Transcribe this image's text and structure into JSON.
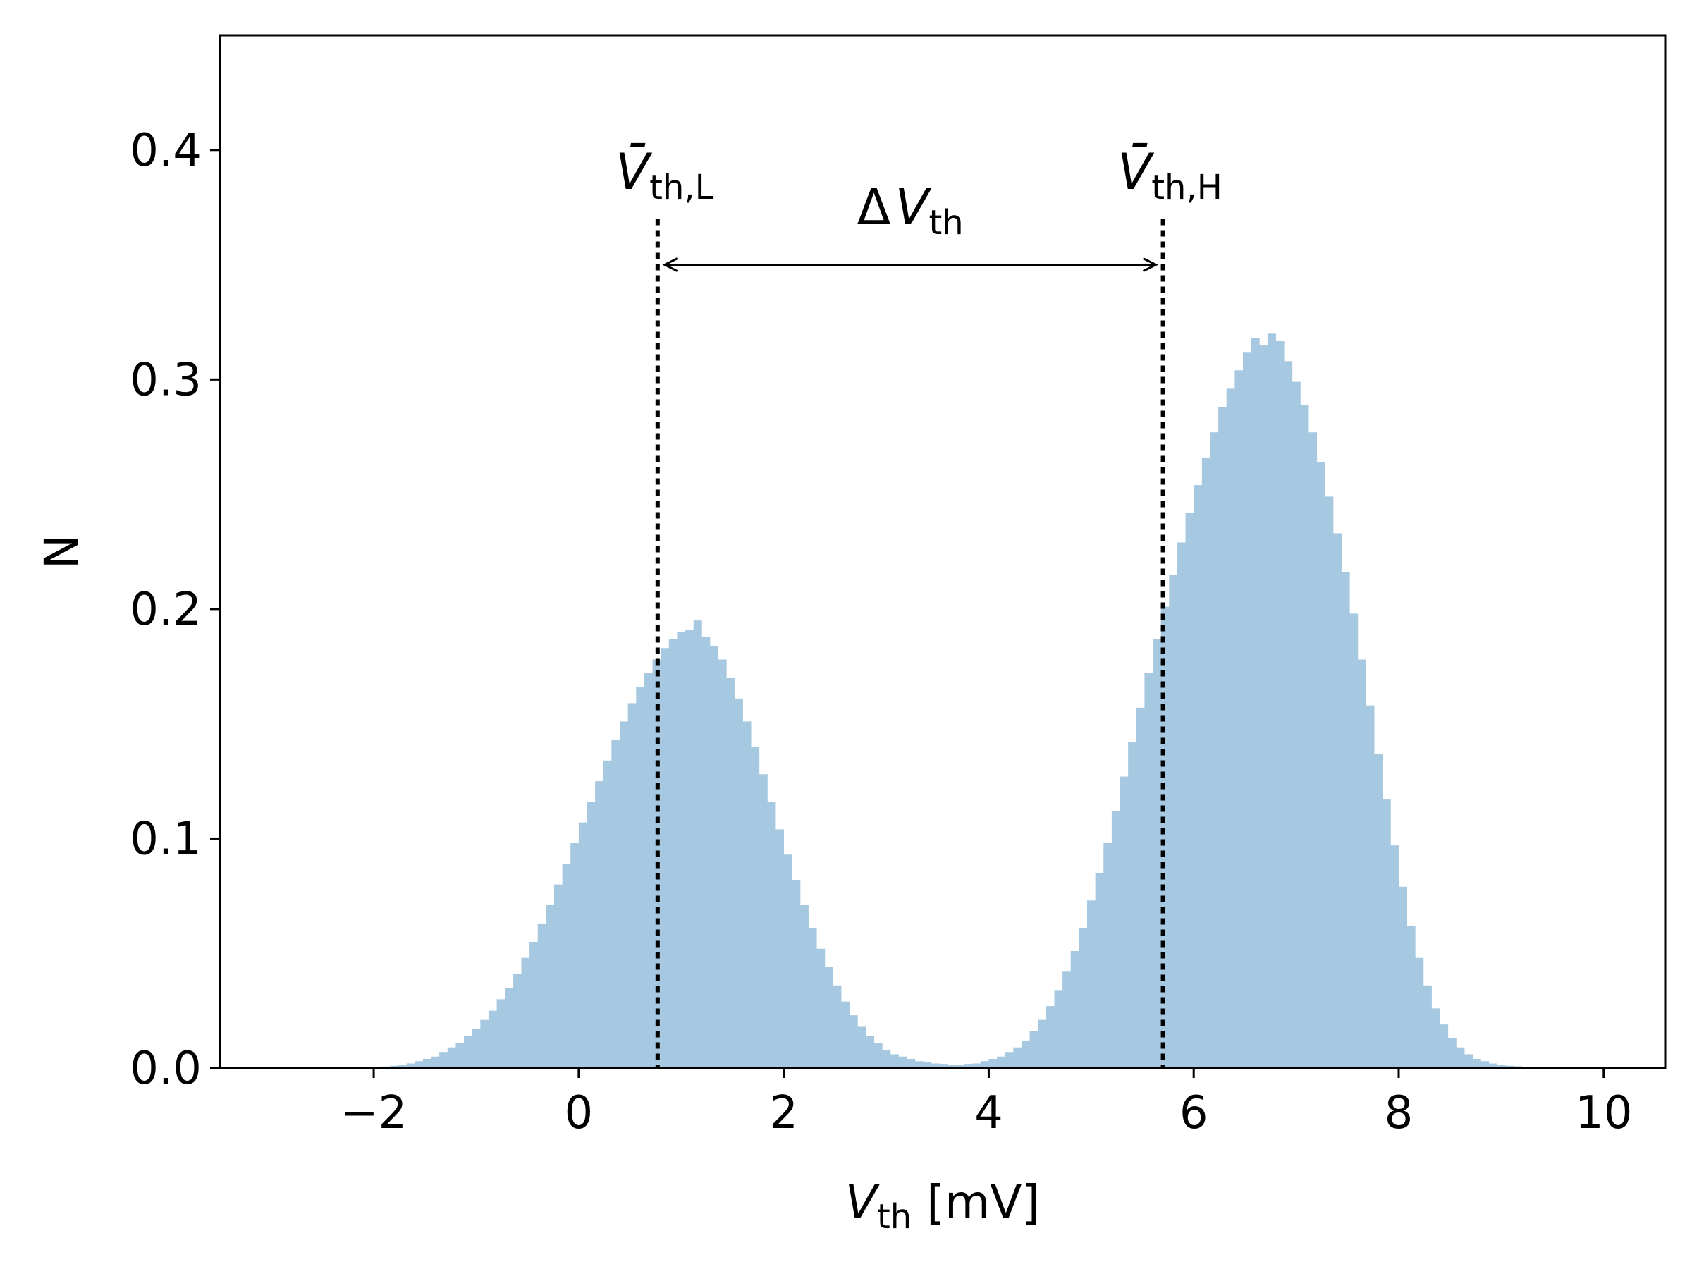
{
  "chart_data": {
    "type": "bar",
    "xlabel": {
      "symbol": "V",
      "subscript": "th",
      "unit": " [mV]"
    },
    "ylabel": "N",
    "xlim": [
      -3.5,
      10.6
    ],
    "ylim": [
      0.0,
      0.45
    ],
    "xticks": [
      -2,
      0,
      2,
      4,
      6,
      8,
      10
    ],
    "xtick_labels": [
      "−2",
      "0",
      "2",
      "4",
      "6",
      "8",
      "10"
    ],
    "yticks": [
      0.0,
      0.1,
      0.2,
      0.3,
      0.4
    ],
    "ytick_labels": [
      "0.0",
      "0.1",
      "0.2",
      "0.3",
      "0.4"
    ],
    "bar_color": "#a6c8e1",
    "bins": {
      "start": -2.0,
      "width": 0.08,
      "counts": [
        0.0005,
        0.0007,
        0.001,
        0.0015,
        0.002,
        0.003,
        0.004,
        0.005,
        0.007,
        0.009,
        0.011,
        0.014,
        0.017,
        0.021,
        0.025,
        0.03,
        0.035,
        0.041,
        0.048,
        0.055,
        0.063,
        0.071,
        0.08,
        0.089,
        0.098,
        0.107,
        0.116,
        0.125,
        0.134,
        0.143,
        0.151,
        0.159,
        0.166,
        0.172,
        0.178,
        0.183,
        0.187,
        0.19,
        0.191,
        0.195,
        0.188,
        0.184,
        0.178,
        0.17,
        0.161,
        0.151,
        0.14,
        0.128,
        0.116,
        0.104,
        0.093,
        0.082,
        0.071,
        0.061,
        0.052,
        0.044,
        0.036,
        0.029,
        0.023,
        0.018,
        0.014,
        0.011,
        0.008,
        0.006,
        0.005,
        0.004,
        0.003,
        0.0025,
        0.002,
        0.0018,
        0.0015,
        0.0015,
        0.0018,
        0.002,
        0.003,
        0.004,
        0.005,
        0.007,
        0.009,
        0.012,
        0.016,
        0.021,
        0.027,
        0.034,
        0.042,
        0.051,
        0.061,
        0.073,
        0.085,
        0.098,
        0.112,
        0.127,
        0.142,
        0.157,
        0.172,
        0.187,
        0.201,
        0.215,
        0.229,
        0.242,
        0.254,
        0.266,
        0.277,
        0.288,
        0.296,
        0.304,
        0.312,
        0.318,
        0.315,
        0.32,
        0.317,
        0.308,
        0.299,
        0.289,
        0.277,
        0.264,
        0.249,
        0.233,
        0.216,
        0.198,
        0.178,
        0.158,
        0.137,
        0.117,
        0.097,
        0.079,
        0.062,
        0.048,
        0.036,
        0.026,
        0.019,
        0.013,
        0.009,
        0.006,
        0.004,
        0.003,
        0.002,
        0.0015,
        0.001,
        0.0008,
        0.0006,
        0.0005
      ]
    },
    "annotations": {
      "vline_low": {
        "x": 0.77,
        "ytop": 0.37,
        "symbol": "V̄",
        "subscript": "th,L"
      },
      "vline_high": {
        "x": 5.7,
        "ytop": 0.37,
        "symbol": "V̄",
        "subscript": "th,H"
      },
      "delta": {
        "y": 0.35,
        "prefix": "Δ",
        "symbol": "V",
        "subscript": "th"
      }
    }
  }
}
